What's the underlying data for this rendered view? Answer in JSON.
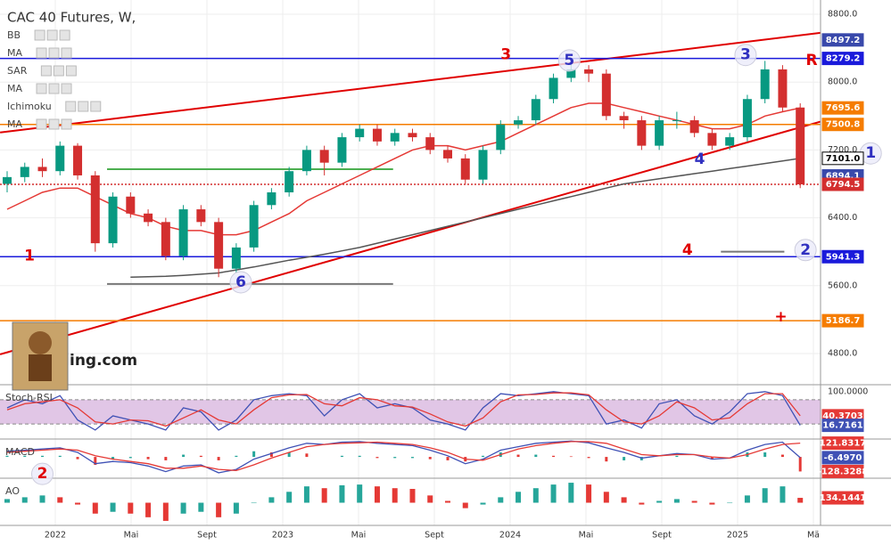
{
  "chart_data": [
    {
      "type": "candlestick",
      "title": "CAC 40 Futures, W,",
      "indicators": [
        "BB",
        "MA",
        "SAR",
        "MA",
        "Ichimoku",
        "MA"
      ],
      "watermark": "ing.com",
      "x_labels": [
        "2022",
        "Mai",
        "Sept",
        "2023",
        "Mai",
        "Sept",
        "2024",
        "Mai",
        "Sept",
        "2025",
        "Mä"
      ],
      "open": [
        6800,
        6880,
        7000,
        6950,
        7250,
        6900,
        6100,
        6650,
        6450,
        6350,
        5950,
        6500,
        6350,
        5800,
        6050,
        6550,
        6700,
        6950,
        7200,
        7050,
        7350,
        7450,
        7300,
        7400,
        7350,
        7200,
        7100,
        6850,
        7200,
        7500,
        7550,
        7800,
        8050,
        8150,
        8100,
        7600,
        7550,
        7250,
        7550,
        7550,
        7400,
        7250,
        7350,
        7800,
        8150,
        7700
      ],
      "high": [
        6950,
        7050,
        7100,
        7300,
        7280,
        6950,
        6700,
        6700,
        6500,
        6400,
        6550,
        6550,
        6400,
        6100,
        6600,
        6750,
        7000,
        7250,
        7250,
        7400,
        7500,
        7500,
        7450,
        7450,
        7400,
        7250,
        7150,
        7250,
        7550,
        7600,
        7850,
        8100,
        8250,
        8200,
        8150,
        7650,
        7600,
        7600,
        7650,
        7600,
        7450,
        7400,
        7850,
        8250,
        8200,
        7750
      ],
      "low": [
        6700,
        6820,
        6880,
        6900,
        6850,
        6000,
        6050,
        6400,
        6300,
        5900,
        5900,
        6300,
        5700,
        5750,
        6000,
        6500,
        6650,
        6900,
        6900,
        7000,
        7300,
        7250,
        7250,
        7300,
        7150,
        7050,
        6800,
        6800,
        7150,
        7450,
        7500,
        7750,
        8000,
        8000,
        7550,
        7450,
        7200,
        7200,
        7450,
        7350,
        7200,
        7200,
        7300,
        7750,
        7650,
        6750
      ],
      "close": [
        6880,
        7000,
        6950,
        7250,
        6900,
        6100,
        6650,
        6450,
        6350,
        5950,
        6500,
        6350,
        5800,
        6050,
        6550,
        6700,
        6950,
        7200,
        7050,
        7350,
        7450,
        7300,
        7400,
        7350,
        7200,
        7100,
        6850,
        7200,
        7500,
        7550,
        7800,
        8050,
        8150,
        8100,
        7600,
        7550,
        7250,
        7550,
        7550,
        7400,
        7250,
        7350,
        7800,
        8150,
        7700,
        6794.5
      ],
      "up_color": "#089981",
      "down_color": "#d32f2f",
      "series": [
        {
          "color": "#e53935",
          "values": [
            6500,
            6600,
            6700,
            6750,
            6750,
            6650,
            6550,
            6450,
            6400,
            6300,
            6250,
            6250,
            6200,
            6200,
            6250,
            6350,
            6450,
            6600,
            6700,
            6800,
            6900,
            7000,
            7100,
            7200,
            7250,
            7250,
            7200,
            7250,
            7300,
            7400,
            7500,
            7600,
            7700,
            7750,
            7750,
            7700,
            7650,
            7600,
            7550,
            7500,
            7450,
            7450,
            7500,
            7600,
            7650,
            7695.6
          ]
        },
        {
          "color": "#555555",
          "values": [
            null,
            null,
            null,
            null,
            null,
            null,
            null,
            5700,
            5705,
            5710,
            5720,
            5735,
            5750,
            5785,
            5820,
            5860,
            5900,
            5935,
            5970,
            6010,
            6050,
            6100,
            6150,
            6200,
            6250,
            6300,
            6350,
            6400,
            6450,
            6500,
            6550,
            6600,
            6650,
            6700,
            6750,
            6800,
            6830,
            6860,
            6890,
            6920,
            6950,
            6980,
            7010,
            7040,
            7070,
            7101.0
          ]
        }
      ],
      "ylim": [
        4432,
        8968
      ],
      "yticks": [
        {
          "value": 4800,
          "label": "4800.0"
        },
        {
          "value": 5600,
          "label": "5600.0"
        },
        {
          "value": 6400,
          "label": "6400.0"
        },
        {
          "value": 7200,
          "label": "7200.0"
        },
        {
          "value": 8000,
          "label": "8000.0"
        },
        {
          "value": 8800,
          "label": "8800.0"
        }
      ],
      "grid": true,
      "levels": [
        {
          "value": 8497.2,
          "label": "8497.2",
          "color": "#3949ab",
          "text_color": "#ffffff",
          "line": null
        },
        {
          "value": 8279.2,
          "label": "8279.2",
          "color": "#1a1adb",
          "text_color": "#ffffff",
          "line": "solid"
        },
        {
          "value": 7695.6,
          "label": "7695.6",
          "color": "#f57c00",
          "text_color": "#ffffff",
          "line": null
        },
        {
          "value": 7500.8,
          "label": "7500.8",
          "color": "#f57c00",
          "text_color": "#ffffff",
          "line": "solid"
        },
        {
          "value": 7101.0,
          "label": "7101.0",
          "color": "#ffffff",
          "text_color": "#000000",
          "line": null
        },
        {
          "value": 6894.1,
          "label": "6894.1",
          "color": "#3949ab",
          "text_color": "#ffffff",
          "line": null
        },
        {
          "value": 6794.5,
          "label": "6794.5",
          "color": "#d32f2f",
          "text_color": "#ffffff",
          "line": "dotted"
        },
        {
          "value": 5941.3,
          "label": "5941.3",
          "color": "#1a1adb",
          "text_color": "#ffffff",
          "line": "solid"
        },
        {
          "value": 5186.7,
          "label": "5186.7",
          "color": "#f57c00",
          "text_color": "#ffffff",
          "line": "solid"
        }
      ],
      "segments": [
        {
          "from": [
            -0.4,
            7406
          ],
          "to": [
            46.15,
            8581
          ],
          "color": "#e00000"
        },
        {
          "from": [
            -0.4,
            4790
          ],
          "to": [
            46.15,
            7534
          ],
          "color": "#e00000"
        },
        {
          "from": [
            5.67,
            5620
          ],
          "to": [
            21.9,
            5620
          ],
          "color": "#777777"
        },
        {
          "from": [
            40.5,
            6000
          ],
          "to": [
            44.1,
            6000
          ],
          "color": "#777777"
        },
        {
          "from": [
            5.67,
            6973
          ],
          "to": [
            21.9,
            6973
          ],
          "color": "#4caf50"
        }
      ],
      "annotations": [
        {
          "text": "1",
          "x": 1.27,
          "y": 5950,
          "color": "#e00000",
          "circle": false
        },
        {
          "text": "3",
          "x": 28.3,
          "y": 8320,
          "color": "#e00000",
          "circle": false
        },
        {
          "text": "5",
          "x": 31.9,
          "y": 8255,
          "color": "#3030c0",
          "circle": true
        },
        {
          "text": "3",
          "x": 41.9,
          "y": 8320,
          "color": "#3030c0",
          "circle": true
        },
        {
          "text": "R",
          "x": 45.65,
          "y": 8255,
          "color": "#e00000",
          "circle": false
        },
        {
          "text": "4",
          "x": 39.3,
          "y": 7090,
          "color": "#3030c0",
          "circle": false
        },
        {
          "text": "4",
          "x": 38.6,
          "y": 6020,
          "color": "#e00000",
          "circle": false
        },
        {
          "text": "2",
          "x": 45.3,
          "y": 6020,
          "color": "#3030c0",
          "circle": true
        },
        {
          "text": "6",
          "x": 13.26,
          "y": 5640,
          "color": "#3030c0",
          "circle": true
        },
        {
          "text": "1",
          "x": 49.0,
          "y": 7160,
          "color": "#3030c0",
          "circle": true
        },
        {
          "text": "+",
          "x": 43.9,
          "y": 5230,
          "color": "#e00000",
          "circle": false
        }
      ]
    },
    {
      "type": "line",
      "title": "Stoch-RSI",
      "series": [
        {
          "color": "#3f51b5",
          "values": [
            60,
            80,
            70,
            90,
            30,
            5,
            40,
            30,
            20,
            5,
            60,
            50,
            5,
            30,
            80,
            90,
            95,
            90,
            40,
            80,
            95,
            60,
            70,
            60,
            30,
            20,
            5,
            60,
            95,
            90,
            95,
            100,
            95,
            90,
            20,
            30,
            10,
            70,
            80,
            40,
            20,
            50,
            95,
            100,
            90,
            16.7161
          ]
        },
        {
          "color": "#e53935",
          "values": [
            55,
            70,
            75,
            80,
            60,
            25,
            20,
            30,
            28,
            15,
            35,
            55,
            30,
            20,
            55,
            85,
            92,
            93,
            70,
            65,
            85,
            80,
            65,
            62,
            45,
            25,
            15,
            35,
            75,
            92,
            93,
            97,
            97,
            92,
            55,
            25,
            20,
            40,
            75,
            60,
            30,
            35,
            70,
            95,
            95,
            40.3703
          ]
        }
      ],
      "band": [
        20,
        80
      ],
      "band_color": "#e1c6e6",
      "ylim": [
        -15,
        115
      ],
      "yticks": [
        {
          "value": 100,
          "label": "100.0000"
        }
      ],
      "price_labels": [
        {
          "value": 40.3703,
          "label": "40.3703",
          "color": "#e53935"
        },
        {
          "value": 16.7161,
          "label": "16.7161",
          "color": "#3f51b5"
        }
      ]
    },
    {
      "type": "line",
      "title": "MACD",
      "series": [
        {
          "color": "#3f51b5",
          "values": [
            50,
            60,
            70,
            80,
            40,
            -60,
            -40,
            -50,
            -80,
            -130,
            -80,
            -70,
            -140,
            -110,
            -20,
            30,
            80,
            120,
            110,
            130,
            135,
            120,
            110,
            100,
            60,
            10,
            -60,
            -20,
            60,
            90,
            120,
            130,
            140,
            125,
            80,
            40,
            -10,
            10,
            30,
            20,
            -20,
            -10,
            60,
            110,
            130,
            -6.497
          ]
        },
        {
          "color": "#e53935",
          "values": [
            40,
            50,
            60,
            70,
            60,
            10,
            -20,
            -40,
            -60,
            -100,
            -100,
            -80,
            -110,
            -120,
            -70,
            -10,
            40,
            90,
            110,
            120,
            125,
            130,
            120,
            110,
            80,
            40,
            -20,
            -30,
            20,
            70,
            100,
            120,
            135,
            135,
            120,
            70,
            20,
            10,
            20,
            20,
            0,
            -10,
            20,
            70,
            110,
            121.8317
          ]
        }
      ],
      "histogram": {
        "up_color": "#26a69a",
        "down_color": "#e53935",
        "values": [
          10,
          10,
          10,
          10,
          -20,
          -70,
          -20,
          -10,
          -20,
          -30,
          20,
          10,
          -30,
          10,
          50,
          40,
          40,
          30,
          0,
          10,
          10,
          -10,
          -10,
          -10,
          -20,
          -30,
          -40,
          10,
          40,
          20,
          20,
          10,
          5,
          -10,
          -40,
          -30,
          -30,
          0,
          10,
          0,
          -20,
          0,
          40,
          40,
          20,
          -128.3288
        ]
      },
      "ylim": [
        -180,
        150
      ],
      "price_labels": [
        {
          "value": 121.8317,
          "label": "121.8317",
          "color": "#e53935"
        },
        {
          "value": -6.497,
          "label": "-6.4970",
          "color": "#3f51b5"
        },
        {
          "value": -128.3288,
          "label": "-128.3288",
          "color": "#e53935"
        }
      ],
      "annotations": [
        {
          "text": "2",
          "x": 2.0,
          "y": -150,
          "color": "#e00000",
          "circle": true
        }
      ]
    },
    {
      "type": "bar",
      "title": "AO",
      "values": [
        100,
        150,
        200,
        150,
        -50,
        -300,
        -250,
        -300,
        -400,
        -500,
        -300,
        -250,
        -400,
        -300,
        0,
        150,
        300,
        450,
        400,
        480,
        500,
        450,
        400,
        380,
        200,
        50,
        -150,
        -50,
        150,
        300,
        400,
        500,
        550,
        500,
        300,
        150,
        -50,
        50,
        100,
        50,
        -50,
        0,
        200,
        400,
        450,
        134.1441
      ],
      "up_color": "#26a69a",
      "down_color": "#e53935",
      "ylim": [
        -600,
        650
      ],
      "price_labels": [
        {
          "value": 134.1441,
          "label": "134.1441",
          "color": "#e53935"
        }
      ]
    }
  ]
}
